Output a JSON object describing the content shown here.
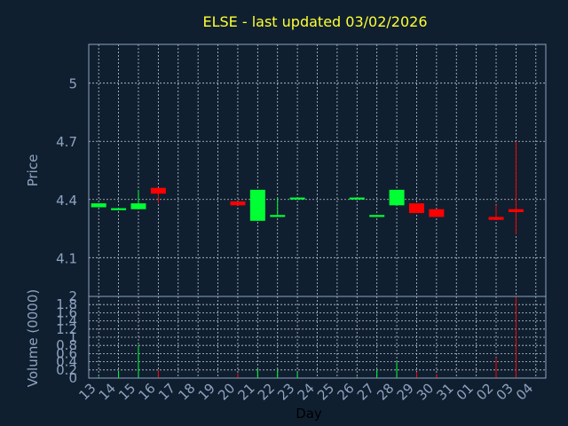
{
  "chart_data": {
    "type": "candlestick",
    "title": "ELSE - last updated 03/02/2026",
    "xlabel": "Day",
    "colors": {
      "background": "#0f1f30",
      "up": "#00ff33",
      "down": "#ff0000",
      "title": "#ffff33",
      "axis_text": "#8fa3bf",
      "xlabel": "#000000"
    },
    "x_ticks": [
      "13",
      "14",
      "15",
      "16",
      "17",
      "18",
      "19",
      "20",
      "21",
      "22",
      "23",
      "24",
      "25",
      "26",
      "27",
      "28",
      "29",
      "30",
      "31",
      "01",
      "02",
      "03",
      "04"
    ],
    "price": {
      "ylabel": "Price",
      "ylim": [
        3.9,
        5.2
      ],
      "y_ticks": [
        "4.1",
        "4.4",
        "4.7",
        "5"
      ],
      "y_tick_values": [
        4.1,
        4.4,
        4.7,
        5.0
      ],
      "grid": true,
      "candles": [
        {
          "day": "13",
          "open": 4.36,
          "close": 4.38,
          "high": 4.38,
          "low": 4.36
        },
        {
          "day": "14",
          "open": 4.345,
          "close": 4.355,
          "high": 4.355,
          "low": 4.345
        },
        {
          "day": "15",
          "open": 4.35,
          "close": 4.38,
          "high": 4.45,
          "low": 4.35
        },
        {
          "day": "16",
          "open": 4.46,
          "close": 4.43,
          "high": 4.46,
          "low": 4.38
        },
        {
          "day": "20",
          "open": 4.39,
          "close": 4.37,
          "high": 4.39,
          "low": 4.37
        },
        {
          "day": "21",
          "open": 4.29,
          "close": 4.45,
          "high": 4.45,
          "low": 4.29
        },
        {
          "day": "22",
          "open": 4.31,
          "close": 4.32,
          "high": 4.41,
          "low": 4.31
        },
        {
          "day": "23",
          "open": 4.4,
          "close": 4.41,
          "high": 4.41,
          "low": 4.4
        },
        {
          "day": "26",
          "open": 4.4,
          "close": 4.41,
          "high": 4.41,
          "low": 4.4
        },
        {
          "day": "27",
          "open": 4.31,
          "close": 4.32,
          "high": 4.32,
          "low": 4.31
        },
        {
          "day": "28",
          "open": 4.37,
          "close": 4.45,
          "high": 4.45,
          "low": 4.37
        },
        {
          "day": "29",
          "open": 4.38,
          "close": 4.33,
          "high": 4.38,
          "low": 4.33
        },
        {
          "day": "30",
          "open": 4.35,
          "close": 4.31,
          "high": 4.35,
          "low": 4.31
        },
        {
          "day": "02",
          "open": 4.31,
          "close": 4.295,
          "high": 4.37,
          "low": 4.295
        },
        {
          "day": "03",
          "open": 4.35,
          "close": 4.335,
          "high": 4.7,
          "low": 4.22
        }
      ]
    },
    "volume": {
      "ylabel": "Volume (0000)",
      "ylim": [
        0,
        2
      ],
      "y_ticks": [
        "0",
        "0.2",
        "0.4",
        "0.6",
        "0.8",
        "1",
        "1.2",
        "1.4",
        "1.6",
        "1.8",
        "2"
      ],
      "grid": true,
      "bars": [
        {
          "day": "13",
          "value": 0.03,
          "dir": "up"
        },
        {
          "day": "14",
          "value": 0.18,
          "dir": "up"
        },
        {
          "day": "15",
          "value": 0.8,
          "dir": "up"
        },
        {
          "day": "16",
          "value": 0.2,
          "dir": "down"
        },
        {
          "day": "20",
          "value": 0.12,
          "dir": "down"
        },
        {
          "day": "21",
          "value": 0.22,
          "dir": "up"
        },
        {
          "day": "22",
          "value": 0.2,
          "dir": "up"
        },
        {
          "day": "23",
          "value": 0.15,
          "dir": "up"
        },
        {
          "day": "26",
          "value": 0.03,
          "dir": "up"
        },
        {
          "day": "27",
          "value": 0.2,
          "dir": "up"
        },
        {
          "day": "28",
          "value": 0.4,
          "dir": "up"
        },
        {
          "day": "29",
          "value": 0.15,
          "dir": "down"
        },
        {
          "day": "30",
          "value": 0.1,
          "dir": "down"
        },
        {
          "day": "02",
          "value": 0.5,
          "dir": "down"
        },
        {
          "day": "03",
          "value": 2.0,
          "dir": "down"
        }
      ]
    }
  }
}
